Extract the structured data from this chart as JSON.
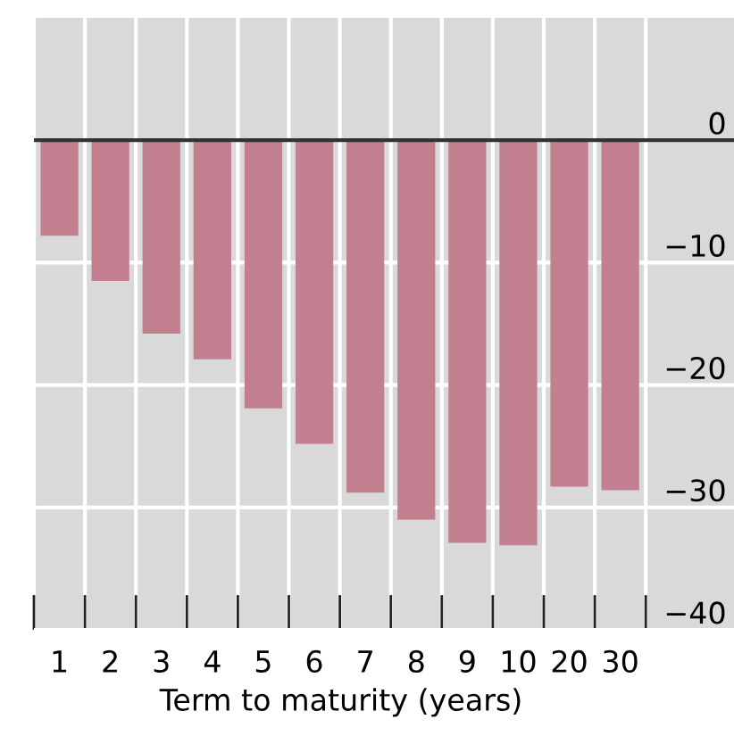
{
  "chart_data": {
    "type": "bar",
    "xlabel": "Term to maturity (years)",
    "categories": [
      "1",
      "2",
      "3",
      "4",
      "5",
      "6",
      "7",
      "8",
      "9",
      "10",
      "20",
      "30"
    ],
    "values": [
      -7.8,
      -11.5,
      -15.8,
      -17.9,
      -21.9,
      -24.8,
      -28.8,
      -31.0,
      -32.9,
      -33.1,
      -28.3,
      -28.6
    ],
    "color": "#c17f8f",
    "ylim": [
      -40,
      10
    ],
    "yticks": [
      0,
      {
        "value": -10,
        "label": "−10"
      },
      {
        "value": -20,
        "label": "−20"
      },
      {
        "value": -30,
        "label": "−30"
      },
      {
        "value": -40,
        "label": "−40"
      }
    ],
    "ref_lines": [
      {
        "axis": "y",
        "value": 0,
        "color": "#333333"
      }
    ],
    "grid": true
  }
}
